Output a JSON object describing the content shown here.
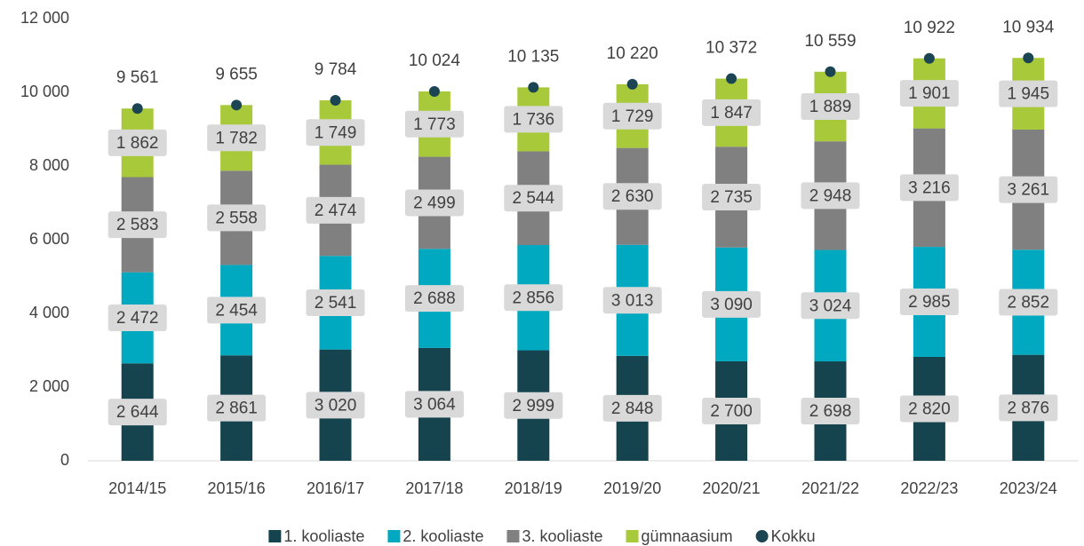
{
  "chart_data": {
    "type": "stacked_bar",
    "categories": [
      "2014/15",
      "2015/16",
      "2016/17",
      "2017/18",
      "2018/19",
      "2019/20",
      "2020/21",
      "2021/22",
      "2022/23",
      "2023/24"
    ],
    "series": [
      {
        "name": "1. kooliaste",
        "color": "#15444f",
        "values": [
          2644,
          2861,
          3020,
          3064,
          2999,
          2848,
          2700,
          2698,
          2820,
          2876
        ],
        "value_labels": [
          "2 644",
          "2 861",
          "3 020",
          "3 064",
          "2 999",
          "2 848",
          "2 700",
          "2 698",
          "2 820",
          "2 876"
        ]
      },
      {
        "name": "2. kooliaste",
        "color": "#00a8c0",
        "values": [
          2472,
          2454,
          2541,
          2688,
          2856,
          3013,
          3090,
          3024,
          2985,
          2852
        ],
        "value_labels": [
          "2 472",
          "2 454",
          "2 541",
          "2 688",
          "2 856",
          "3 013",
          "3 090",
          "3 024",
          "2 985",
          "2 852"
        ]
      },
      {
        "name": "3. kooliaste",
        "color": "#808080",
        "values": [
          2583,
          2558,
          2474,
          2499,
          2544,
          2630,
          2735,
          2948,
          3216,
          3261
        ],
        "value_labels": [
          "2 583",
          "2 558",
          "2 474",
          "2 499",
          "2 544",
          "2 630",
          "2 735",
          "2 948",
          "3 216",
          "3 261"
        ]
      },
      {
        "name": "gümnaasium",
        "color": "#a7c93a",
        "values": [
          1862,
          1782,
          1749,
          1773,
          1736,
          1729,
          1847,
          1889,
          1901,
          1945
        ],
        "value_labels": [
          "1 862",
          "1 782",
          "1 749",
          "1 773",
          "1 736",
          "1 729",
          "1 847",
          "1 889",
          "1 901",
          "1 945"
        ]
      }
    ],
    "total": {
      "name": "Kokku",
      "color": "#1c4553",
      "values": [
        9561,
        9655,
        9784,
        10024,
        10135,
        10220,
        10372,
        10559,
        10922,
        10934
      ],
      "value_labels": [
        "9 561",
        "9 655",
        "9 784",
        "10 024",
        "10 135",
        "10 220",
        "10 372",
        "10 559",
        "10 922",
        "10 934"
      ]
    },
    "ylim": [
      0,
      12000
    ],
    "yticks": [
      0,
      {
        "value": 2000,
        "label": "2 000"
      },
      {
        "value": 4000,
        "label": "4 000"
      },
      {
        "value": 6000,
        "label": "6 000"
      },
      {
        "value": 8000,
        "label": "8 000"
      },
      {
        "value": 10000,
        "label": "10 000"
      },
      {
        "value": 12000,
        "label": "12 000"
      }
    ],
    "grid": false,
    "legend": "bottom"
  }
}
